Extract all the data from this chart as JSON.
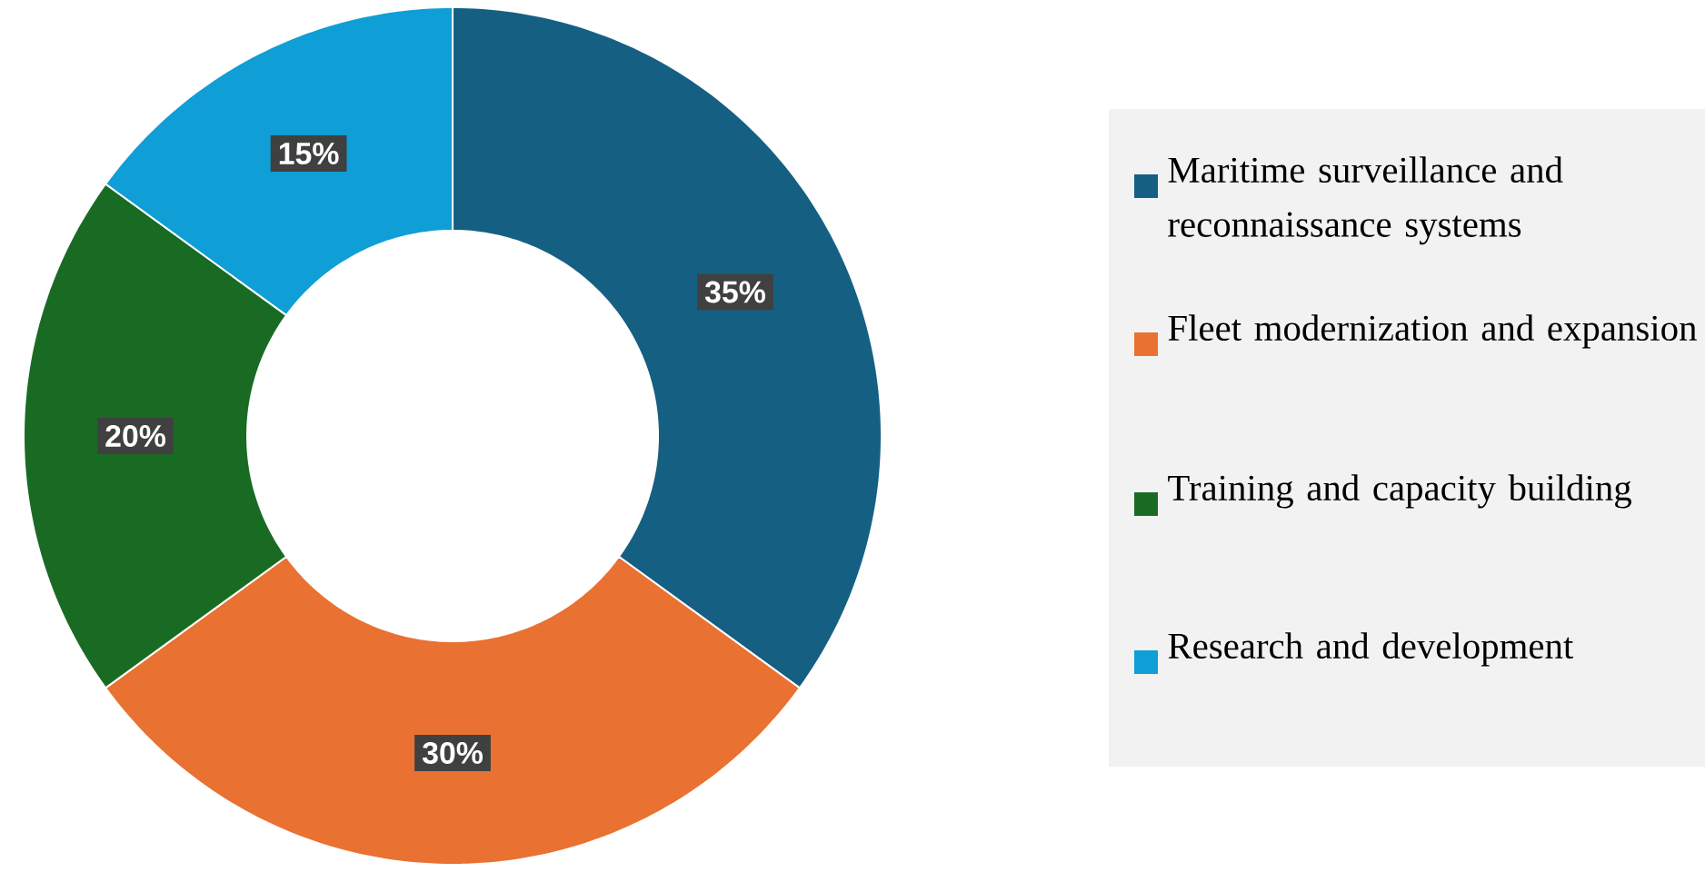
{
  "chart_data": {
    "type": "donut",
    "categories": [
      "Maritime surveillance and reconnaissance systems",
      "Fleet modernization and expansion",
      "Training and capacity building",
      "Research and development"
    ],
    "values": [
      35,
      30,
      20,
      15
    ],
    "value_labels": [
      "35%",
      "30%",
      "20%",
      "15%"
    ],
    "colors": [
      "#156082",
      "#e97132",
      "#196b24",
      "#0f9ed5"
    ],
    "legend": "right"
  }
}
